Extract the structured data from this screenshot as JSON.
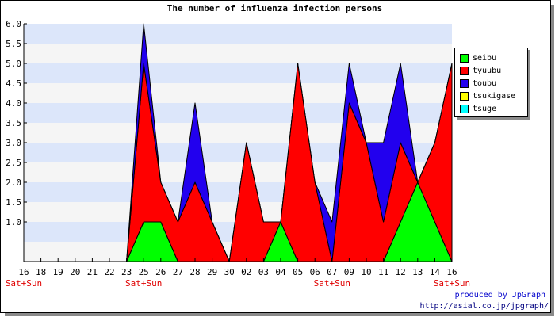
{
  "chart_data": {
    "type": "area",
    "title": "The number of influenza infection persons",
    "categories": [
      "16",
      "18",
      "19",
      "20",
      "21",
      "22",
      "23",
      "25",
      "26",
      "27",
      "28",
      "29",
      "30",
      "02",
      "03",
      "04",
      "05",
      "06",
      "07",
      "09",
      "10",
      "11",
      "12",
      "13",
      "14",
      "16"
    ],
    "weekend_labels": [
      {
        "index": 0,
        "text": "Sat+Sun"
      },
      {
        "index": 7,
        "text": "Sat+Sun"
      },
      {
        "index": 18,
        "text": "Sat+Sun"
      },
      {
        "index": 25,
        "text": "Sat+Sun"
      }
    ],
    "ylim": [
      0,
      6
    ],
    "yticks": [
      "1.0",
      "1.5",
      "2.0",
      "2.5",
      "3.0",
      "3.5",
      "4.0",
      "4.5",
      "5.0",
      "5.5",
      "6.0"
    ],
    "grid": true,
    "stacked": true,
    "legend_position": "right",
    "series": [
      {
        "name": "seibu",
        "color": "#00ff00",
        "values": [
          0,
          0,
          0,
          0,
          0,
          0,
          0,
          1,
          1,
          0,
          0,
          0,
          0,
          0,
          0,
          1,
          0,
          0,
          0,
          0,
          0,
          0,
          1,
          2,
          1,
          0
        ]
      },
      {
        "name": "tyuubu",
        "color": "#ff0000",
        "values": [
          0,
          0,
          0,
          0,
          0,
          0,
          0,
          4,
          1,
          1,
          2,
          1,
          0,
          3,
          1,
          0,
          5,
          2,
          0,
          4,
          3,
          1,
          2,
          0,
          2,
          5
        ]
      },
      {
        "name": "toubu",
        "color": "#2200ee",
        "values": [
          0,
          0,
          0,
          0,
          0,
          0,
          0,
          1,
          0,
          0,
          2,
          0,
          0,
          0,
          0,
          0,
          0,
          0,
          1,
          1,
          0,
          2,
          2,
          0,
          0,
          0
        ]
      },
      {
        "name": "tsukigase",
        "color": "#ffff00",
        "values": [
          0,
          0,
          0,
          0,
          0,
          0,
          0,
          0,
          0,
          0,
          0,
          0,
          0,
          0,
          0,
          0,
          0,
          0,
          0,
          0,
          0,
          0,
          0,
          0,
          0,
          0
        ]
      },
      {
        "name": "tsuge",
        "color": "#00ffff",
        "values": [
          0,
          0,
          0,
          0,
          0,
          0,
          0,
          0,
          0,
          0,
          0,
          0,
          0,
          0,
          0,
          0,
          0,
          0,
          0,
          0,
          0,
          0,
          0,
          0,
          0,
          0
        ]
      }
    ]
  },
  "footer": {
    "credit": "produced by JpGraph",
    "url": "http://asial.co.jp/jpgraph/"
  }
}
